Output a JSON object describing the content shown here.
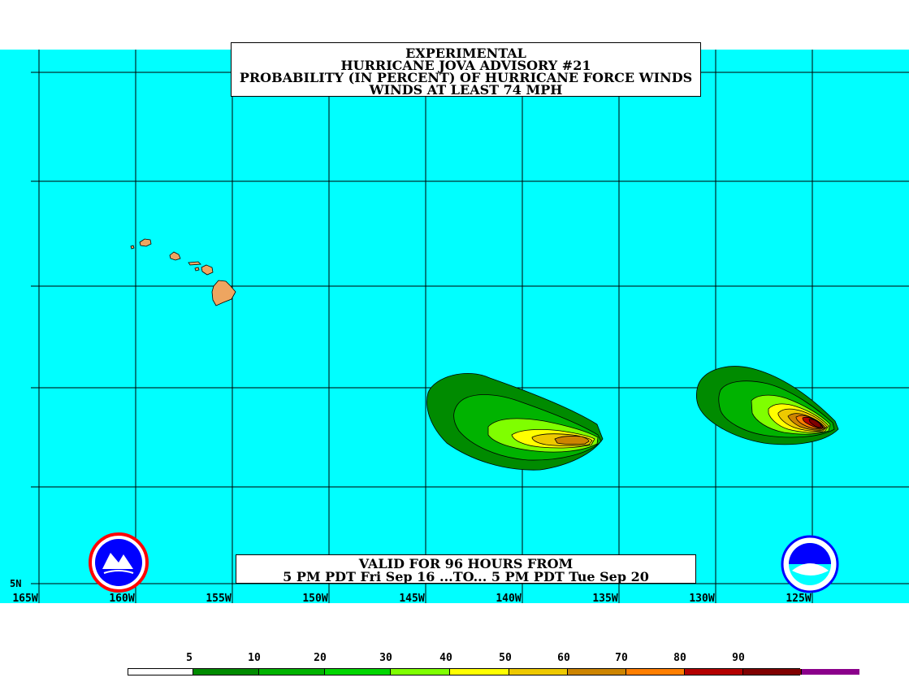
{
  "title": {
    "line1": "EXPERIMENTAL",
    "line2": "HURRICANE JOVA ADVISORY #21",
    "line3": "PROBABILITY (IN PERCENT) OF HURRICANE FORCE WINDS",
    "line4": "WINDS AT LEAST 74 MPH"
  },
  "valid": {
    "line1": "VALID FOR 96 HOURS FROM",
    "line2": "5 PM PDT Fri Sep 16 ...TO... 5 PM PDT Tue Sep 20"
  },
  "axes": {
    "lon_labels": [
      "165W",
      "160W",
      "155W",
      "150W",
      "145W",
      "140W",
      "135W",
      "130W",
      "125W"
    ],
    "lat_label": "5N"
  },
  "legend": {
    "thresholds": [
      "5",
      "10",
      "20",
      "30",
      "40",
      "50",
      "60",
      "70",
      "80",
      "90"
    ],
    "colors": [
      "#ffffff",
      "#008b00",
      "#00b300",
      "#00d700",
      "#7fff00",
      "#ffff00",
      "#eec900",
      "#cd8500",
      "#ff7f00",
      "#b40000",
      "#800000",
      "#8b008b"
    ]
  },
  "colors": {
    "ocean": "#00ffff",
    "land": "#eea560",
    "grid": "#000000"
  },
  "logos": {
    "nws_text": "NATIONAL WEATHER SERVICE",
    "noaa_text": "NOAA"
  }
}
